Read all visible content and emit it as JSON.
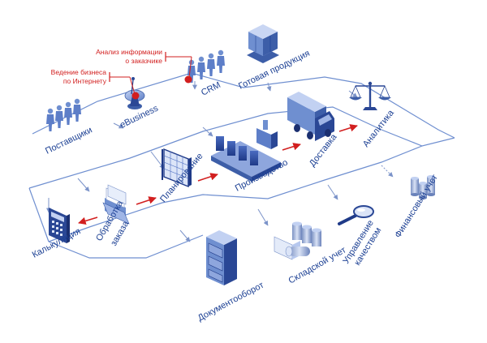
{
  "nodes": {
    "suppliers": "Поставщики",
    "ebusiness": "eBusiness",
    "crm": "CRM",
    "finished_goods": "Готовая продукция",
    "analytics": "Аналитика",
    "delivery": "Доставка",
    "production": "Производство",
    "planning": "Планирование",
    "order_processing_line1": "Обработка",
    "order_processing_line2": "заказа",
    "costing": "Калькуляция",
    "document_flow": "Документооборот",
    "warehouse": "Складской учет",
    "quality_line1": "Управление",
    "quality_line2": "качеством",
    "finance": "Финансовый учет"
  },
  "callouts": {
    "customer_analysis_line1": "Анализ информации",
    "customer_analysis_line2": "о заказчике",
    "online_business_line1": "Ведение бизнеса",
    "online_business_line2": "по Интернету"
  },
  "colors": {
    "accent_red": "#d21f1f",
    "label_blue": "#1b3f93",
    "route_blue": "#6f8fd0"
  }
}
